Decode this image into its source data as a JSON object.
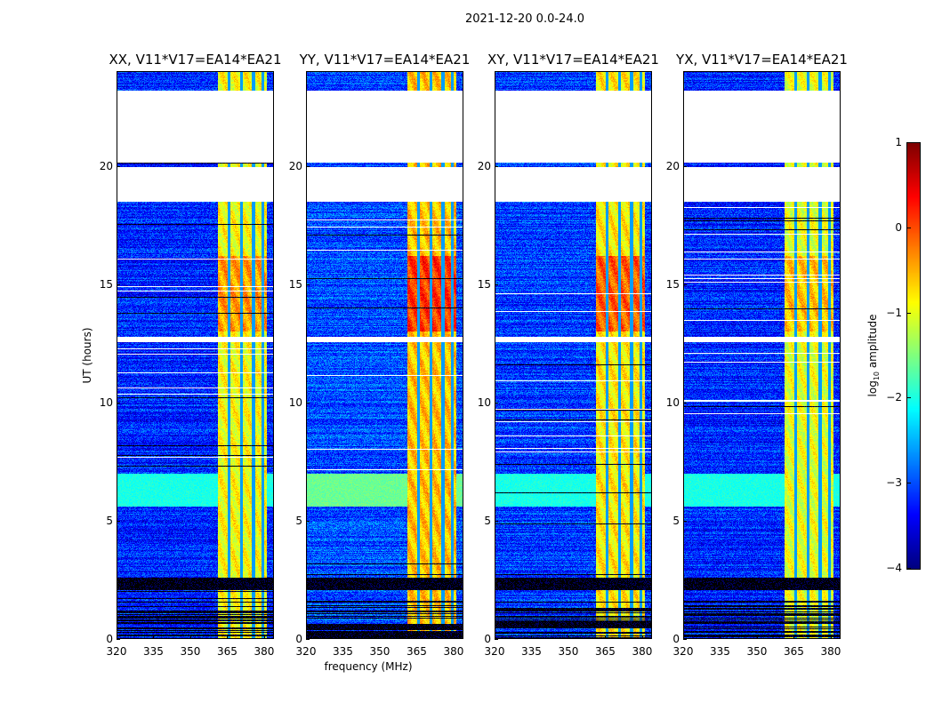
{
  "chart_data": {
    "type": "heatmap",
    "title": "2021-12-20 0.0-24.0",
    "xlabel": "frequency (MHz)",
    "ylabel": "UT (hours)",
    "xlim": [
      320,
      384
    ],
    "ylim": [
      0,
      24
    ],
    "xticks": [
      320,
      335,
      350,
      365,
      380
    ],
    "yticks": [
      0,
      5,
      10,
      15,
      20
    ],
    "colorbar": {
      "label_prefix": "log",
      "label_sub": "10",
      "label_suffix": " amplitude",
      "colormap": "jet",
      "range": [
        -4,
        1
      ],
      "ticks": [
        "1",
        "0",
        "−1",
        "−2",
        "−3",
        "−4"
      ],
      "tick_values": [
        1,
        0,
        -1,
        -2,
        -3,
        -4
      ]
    },
    "panels": [
      {
        "title": "XX, V11*V17=EA14*EA21",
        "band_level": -0.9,
        "peak_level": -0.4,
        "bg_level": -3.2
      },
      {
        "title": "YY, V11*V17=EA14*EA21",
        "band_level": -0.6,
        "peak_level": 0.1,
        "bg_level": -3.0
      },
      {
        "title": "XY, V11*V17=EA14*EA21",
        "band_level": -0.8,
        "peak_level": -0.1,
        "bg_level": -3.1
      },
      {
        "title": "YX, V11*V17=EA14*EA21",
        "band_level": -1.0,
        "peak_level": -0.6,
        "bg_level": -3.2
      }
    ],
    "features": {
      "rfi_band_mhz": [
        361,
        381
      ],
      "band_notches_mhz": [
        365.5,
        370.5,
        375.5,
        379.3
      ],
      "blank_hours": [
        [
          18.5,
          19.95
        ],
        [
          20.15,
          23.2
        ],
        [
          12.55,
          12.8
        ]
      ],
      "flagged_hours": [
        [
          2.1,
          2.6
        ],
        [
          1.55,
          1.65
        ],
        [
          0.0,
          1.45
        ]
      ],
      "strong_rfi_hours": [
        13.0,
        16.2
      ],
      "broadband_hours": [
        5.6,
        7.0
      ]
    }
  }
}
